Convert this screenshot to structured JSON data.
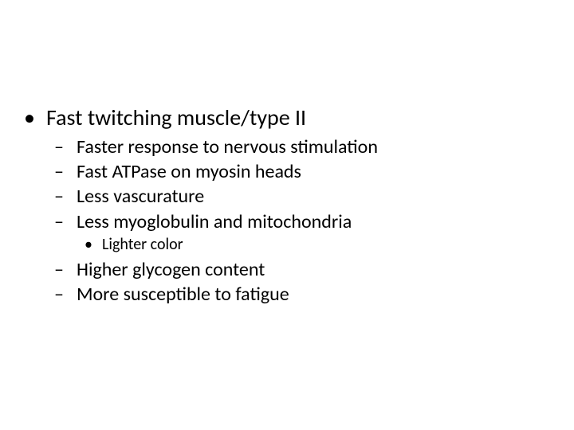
{
  "slide": {
    "bullets": [
      {
        "level": 1,
        "text": "Fast twitching muscle/type II"
      },
      {
        "level": 2,
        "text": "Faster response to nervous stimulation"
      },
      {
        "level": 2,
        "text": "Fast ATPase on myosin heads"
      },
      {
        "level": 2,
        "text": "Less vascurature"
      },
      {
        "level": 2,
        "text": "Less myoglobulin and mitochondria"
      },
      {
        "level": 3,
        "text": "Lighter color"
      },
      {
        "level": 2,
        "text": "Higher glycogen content"
      },
      {
        "level": 2,
        "text": "More susceptible to fatigue"
      }
    ],
    "background_color": "#ffffff",
    "text_color": "#000000",
    "font_family": "Calibri",
    "level_fontsize": {
      "1": 28,
      "2": 24,
      "3": 20
    }
  }
}
